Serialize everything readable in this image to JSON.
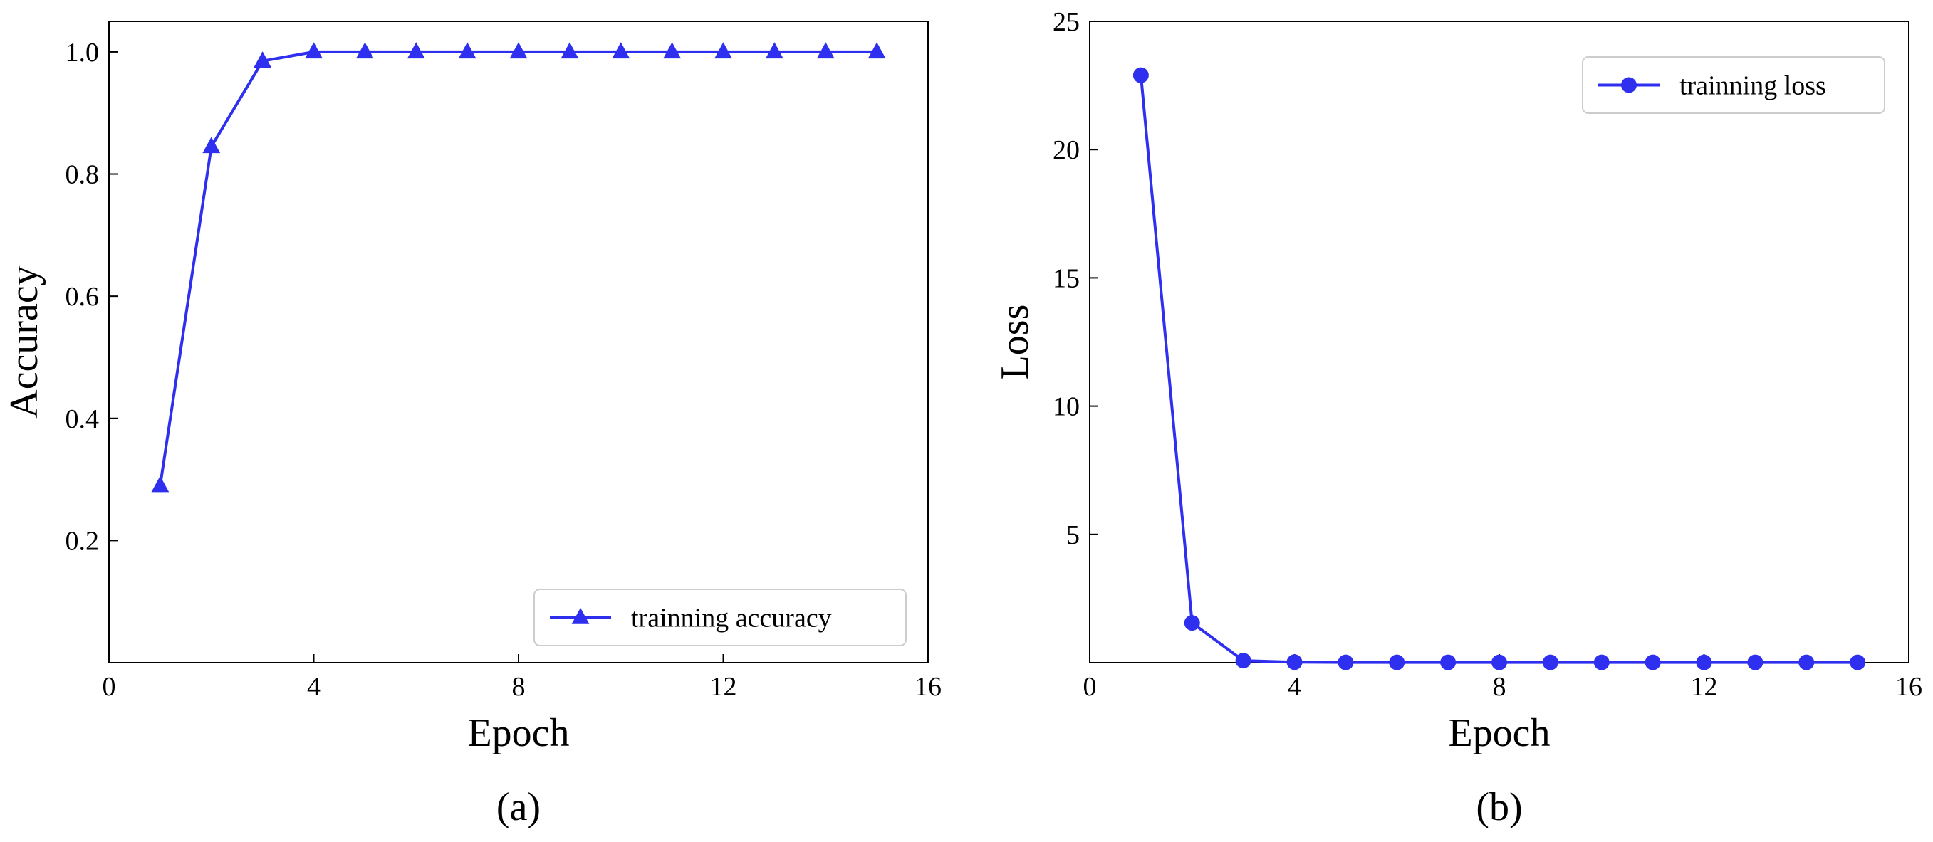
{
  "series_color": "#2f2ff0",
  "chart_data": [
    {
      "type": "line",
      "panel_label": "(a)",
      "xlabel": "Epoch",
      "ylabel": "Accuracy",
      "xlim": [
        0,
        16
      ],
      "ylim": [
        0.0,
        1.05
      ],
      "xticks": [
        0,
        4,
        8,
        12,
        16
      ],
      "yticks": [
        0.2,
        0.4,
        0.6,
        0.8,
        1.0
      ],
      "ytick_labels": [
        "0.2",
        "0.4",
        "0.6",
        "0.8",
        "1.0"
      ],
      "grid": false,
      "legend_position": "lower-right",
      "series": [
        {
          "name": "trainning accuracy",
          "marker": "triangle",
          "x": [
            1,
            2,
            3,
            4,
            5,
            6,
            7,
            8,
            9,
            10,
            11,
            12,
            13,
            14,
            15
          ],
          "y": [
            0.29,
            0.845,
            0.985,
            1.0,
            1.0,
            1.0,
            1.0,
            1.0,
            1.0,
            1.0,
            1.0,
            1.0,
            1.0,
            1.0,
            1.0
          ]
        }
      ]
    },
    {
      "type": "line",
      "panel_label": "(b)",
      "xlabel": "Epoch",
      "ylabel": "Loss",
      "xlim": [
        0,
        16
      ],
      "ylim": [
        0,
        25
      ],
      "xticks": [
        0,
        4,
        8,
        12,
        16
      ],
      "yticks": [
        5,
        10,
        15,
        20,
        25
      ],
      "ytick_labels": [
        "5",
        "10",
        "15",
        "20",
        "25"
      ],
      "grid": false,
      "legend_position": "upper-right",
      "series": [
        {
          "name": "trainning loss",
          "marker": "circle",
          "x": [
            1,
            2,
            3,
            4,
            5,
            6,
            7,
            8,
            9,
            10,
            11,
            12,
            13,
            14,
            15
          ],
          "y": [
            22.9,
            1.55,
            0.08,
            0.02,
            0.01,
            0.01,
            0.01,
            0.01,
            0.01,
            0.01,
            0.01,
            0.01,
            0.01,
            0.01,
            0.01
          ]
        }
      ]
    }
  ]
}
